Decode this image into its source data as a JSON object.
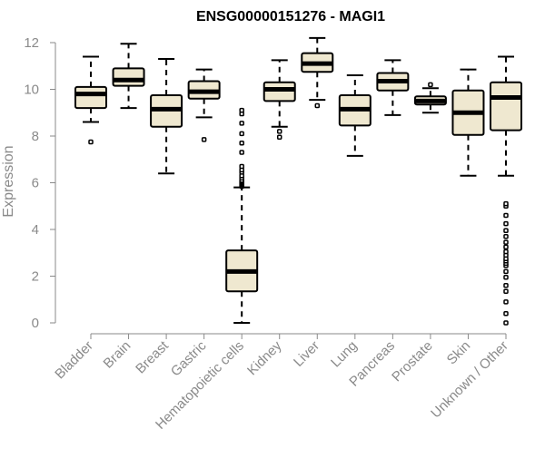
{
  "chart_data": {
    "type": "boxplot",
    "title": "ENSG00000151276 - MAGI1",
    "xlabel": "",
    "ylabel": "Expression",
    "ylim": [
      0,
      12
    ],
    "yticks": [
      0,
      2,
      4,
      6,
      8,
      10,
      12
    ],
    "grid": false,
    "legend": "none",
    "colors": {
      "box_fill": "#EFE8D0",
      "box_stroke": "#000000",
      "axis": "#8a8a8a",
      "title": "#000000"
    },
    "categories": [
      "Bladder",
      "Brain",
      "Breast",
      "Gastric",
      "Hematopoietic cells",
      "Kidney",
      "Liver",
      "Lung",
      "Pancreas",
      "Prostate",
      "Skin",
      "Unknown / Other"
    ],
    "boxes": [
      {
        "category": "Bladder",
        "whisker_low": 8.6,
        "q1": 9.2,
        "median": 9.8,
        "q3": 10.1,
        "whisker_high": 11.4,
        "outliers": [
          7.75
        ]
      },
      {
        "category": "Brain",
        "whisker_low": 9.2,
        "q1": 10.15,
        "median": 10.4,
        "q3": 10.9,
        "whisker_high": 11.95,
        "outliers": []
      },
      {
        "category": "Breast",
        "whisker_low": 6.4,
        "q1": 8.4,
        "median": 9.15,
        "q3": 9.75,
        "whisker_high": 11.3,
        "outliers": []
      },
      {
        "category": "Gastric",
        "whisker_low": 8.8,
        "q1": 9.6,
        "median": 9.9,
        "q3": 10.35,
        "whisker_high": 10.85,
        "outliers": [
          7.85
        ]
      },
      {
        "category": "Hematopoietic cells",
        "whisker_low": 0.0,
        "q1": 1.35,
        "median": 2.2,
        "q3": 3.1,
        "whisker_high": 5.8,
        "outliers": [
          5.85,
          5.9,
          5.95,
          6.0,
          6.05,
          6.1,
          6.2,
          6.3,
          6.45,
          6.55,
          6.7,
          7.3,
          7.7,
          8.1,
          8.55,
          8.95,
          9.1
        ]
      },
      {
        "category": "Kidney",
        "whisker_low": 8.4,
        "q1": 9.5,
        "median": 10.0,
        "q3": 10.3,
        "whisker_high": 11.25,
        "outliers": [
          7.95,
          8.2
        ]
      },
      {
        "category": "Liver",
        "whisker_low": 9.55,
        "q1": 10.75,
        "median": 11.1,
        "q3": 11.55,
        "whisker_high": 12.2,
        "outliers": [
          9.3
        ]
      },
      {
        "category": "Lung",
        "whisker_low": 7.15,
        "q1": 8.45,
        "median": 9.15,
        "q3": 9.75,
        "whisker_high": 10.6,
        "outliers": []
      },
      {
        "category": "Pancreas",
        "whisker_low": 8.9,
        "q1": 9.95,
        "median": 10.35,
        "q3": 10.7,
        "whisker_high": 11.25,
        "outliers": []
      },
      {
        "category": "Prostate",
        "whisker_low": 9.0,
        "q1": 9.35,
        "median": 9.5,
        "q3": 9.7,
        "whisker_high": 10.05,
        "outliers": [
          10.2
        ]
      },
      {
        "category": "Skin",
        "whisker_low": 6.3,
        "q1": 8.05,
        "median": 9.0,
        "q3": 9.95,
        "whisker_high": 10.85,
        "outliers": []
      },
      {
        "category": "Unknown / Other",
        "whisker_low": 6.3,
        "q1": 8.25,
        "median": 9.65,
        "q3": 10.3,
        "whisker_high": 11.4,
        "outliers": [
          0.0,
          0.4,
          0.9,
          1.35,
          1.6,
          1.95,
          2.2,
          2.45,
          2.55,
          2.65,
          2.75,
          2.9,
          3.05,
          3.25,
          3.45,
          3.7,
          3.95,
          4.25,
          4.6,
          5.0,
          5.1
        ]
      }
    ]
  }
}
